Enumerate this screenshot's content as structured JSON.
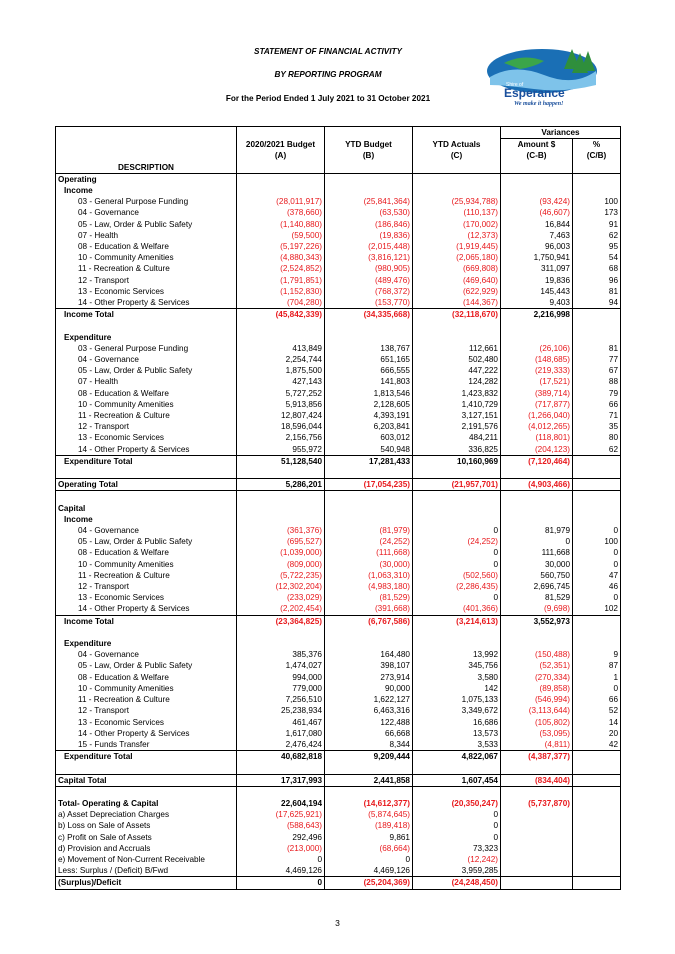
{
  "header": {
    "title": "STATEMENT OF FINANCIAL ACTIVITY",
    "subtitle": "BY REPORTING PROGRAM",
    "period": "For the Period Ended 1 July 2021 to 31 October 2021"
  },
  "logo": {
    "shire_of": "Shire of",
    "name": "Esperance",
    "tagline": "We make it happen!"
  },
  "table": {
    "variances_label": "Variances",
    "columns": [
      "DESCRIPTION",
      "2020/2021 Budget",
      "(A)",
      "YTD Budget",
      "(B)",
      "YTD Actuals",
      "(C)",
      "Amount $",
      "(C-B)",
      "%",
      "(C/B)"
    ],
    "rows": [
      {
        "t": "section",
        "label": "Operating"
      },
      {
        "t": "sub",
        "label": "Income"
      },
      {
        "t": "item",
        "label": "03 - General Purpose Funding",
        "v": [
          "(28,011,917)",
          "(25,841,364)",
          "(25,934,788)",
          "(93,424)",
          "100"
        ]
      },
      {
        "t": "item",
        "label": "04 - Governance",
        "v": [
          "(378,660)",
          "(63,530)",
          "(110,137)",
          "(46,607)",
          "173"
        ]
      },
      {
        "t": "item",
        "label": "05 - Law, Order & Public Safety",
        "v": [
          "(1,140,880)",
          "(186,846)",
          "(170,002)",
          "16,844",
          "91"
        ]
      },
      {
        "t": "item",
        "label": "07 - Health",
        "v": [
          "(59,500)",
          "(19,836)",
          "(12,373)",
          "7,463",
          "62"
        ]
      },
      {
        "t": "item",
        "label": "08 - Education & Welfare",
        "v": [
          "(5,197,226)",
          "(2,015,448)",
          "(1,919,445)",
          "96,003",
          "95"
        ]
      },
      {
        "t": "item",
        "label": "10 - Community Amenities",
        "v": [
          "(4,880,343)",
          "(3,816,121)",
          "(2,065,180)",
          "1,750,941",
          "54"
        ]
      },
      {
        "t": "item",
        "label": "11 - Recreation & Culture",
        "v": [
          "(2,524,852)",
          "(980,905)",
          "(669,808)",
          "311,097",
          "68"
        ]
      },
      {
        "t": "item",
        "label": "12 - Transport",
        "v": [
          "(1,791,851)",
          "(489,476)",
          "(469,640)",
          "19,836",
          "96"
        ]
      },
      {
        "t": "item",
        "label": "13 - Economic Services",
        "v": [
          "(1,152,830)",
          "(768,372)",
          "(622,929)",
          "145,443",
          "81"
        ]
      },
      {
        "t": "item",
        "label": "14 - Other Property & Services",
        "v": [
          "(704,280)",
          "(153,770)",
          "(144,367)",
          "9,403",
          "94"
        ]
      },
      {
        "t": "total",
        "label": "Income Total",
        "v": [
          "(45,842,339)",
          "(34,335,668)",
          "(32,118,670)",
          "2,216,998",
          ""
        ]
      },
      {
        "t": "blank"
      },
      {
        "t": "sub",
        "label": "Expenditure"
      },
      {
        "t": "item",
        "label": "03 - General Purpose Funding",
        "v": [
          "413,849",
          "138,767",
          "112,661",
          "(26,106)",
          "81"
        ]
      },
      {
        "t": "item",
        "label": "04 - Governance",
        "v": [
          "2,254,744",
          "651,165",
          "502,480",
          "(148,685)",
          "77"
        ]
      },
      {
        "t": "item",
        "label": "05 - Law, Order & Public Safety",
        "v": [
          "1,875,500",
          "666,555",
          "447,222",
          "(219,333)",
          "67"
        ]
      },
      {
        "t": "item",
        "label": "07 - Health",
        "v": [
          "427,143",
          "141,803",
          "124,282",
          "(17,521)",
          "88"
        ]
      },
      {
        "t": "item",
        "label": "08 - Education & Welfare",
        "v": [
          "5,727,252",
          "1,813,546",
          "1,423,832",
          "(389,714)",
          "79"
        ]
      },
      {
        "t": "item",
        "label": "10 - Community Amenities",
        "v": [
          "5,913,856",
          "2,128,605",
          "1,410,729",
          "(717,877)",
          "66"
        ]
      },
      {
        "t": "item",
        "label": "11 - Recreation & Culture",
        "v": [
          "12,807,424",
          "4,393,191",
          "3,127,151",
          "(1,266,040)",
          "71"
        ]
      },
      {
        "t": "item",
        "label": "12 - Transport",
        "v": [
          "18,596,044",
          "6,203,841",
          "2,191,576",
          "(4,012,265)",
          "35"
        ]
      },
      {
        "t": "item",
        "label": "13 - Economic Services",
        "v": [
          "2,156,756",
          "603,012",
          "484,211",
          "(118,801)",
          "80"
        ]
      },
      {
        "t": "item",
        "label": "14 - Other Property & Services",
        "v": [
          "955,972",
          "540,948",
          "336,825",
          "(204,123)",
          "62"
        ]
      },
      {
        "t": "total",
        "label": "Expenditure Total",
        "v": [
          "51,128,540",
          "17,281,433",
          "10,160,969",
          "(7,120,464)",
          ""
        ]
      },
      {
        "t": "blank"
      },
      {
        "t": "grand",
        "label": "Operating Total",
        "v": [
          "5,286,201",
          "(17,054,235)",
          "(21,957,701)",
          "(4,903,466)",
          ""
        ]
      },
      {
        "t": "blank"
      },
      {
        "t": "section",
        "label": "Capital"
      },
      {
        "t": "sub",
        "label": "Income"
      },
      {
        "t": "item",
        "label": "04 - Governance",
        "v": [
          "(361,376)",
          "(81,979)",
          "0",
          "81,979",
          "0"
        ]
      },
      {
        "t": "item",
        "label": "05 - Law, Order & Public Safety",
        "v": [
          "(695,527)",
          "(24,252)",
          "(24,252)",
          "0",
          "100"
        ]
      },
      {
        "t": "item",
        "label": "08 - Education & Welfare",
        "v": [
          "(1,039,000)",
          "(111,668)",
          "0",
          "111,668",
          "0"
        ]
      },
      {
        "t": "item",
        "label": "10 - Community Amenities",
        "v": [
          "(809,000)",
          "(30,000)",
          "0",
          "30,000",
          "0"
        ]
      },
      {
        "t": "item",
        "label": "11 - Recreation & Culture",
        "v": [
          "(5,722,235)",
          "(1,063,310)",
          "(502,560)",
          "560,750",
          "47"
        ]
      },
      {
        "t": "item",
        "label": "12 - Transport",
        "v": [
          "(12,302,204)",
          "(4,983,180)",
          "(2,286,435)",
          "2,696,745",
          "46"
        ]
      },
      {
        "t": "item",
        "label": "13 - Economic Services",
        "v": [
          "(233,029)",
          "(81,529)",
          "0",
          "81,529",
          "0"
        ]
      },
      {
        "t": "item",
        "label": "14 - Other Property & Services",
        "v": [
          "(2,202,454)",
          "(391,668)",
          "(401,366)",
          "(9,698)",
          "102"
        ]
      },
      {
        "t": "total",
        "label": "Income Total",
        "v": [
          "(23,364,825)",
          "(6,767,586)",
          "(3,214,613)",
          "3,552,973",
          ""
        ]
      },
      {
        "t": "blank"
      },
      {
        "t": "sub",
        "label": "Expenditure"
      },
      {
        "t": "item",
        "label": "04 - Governance",
        "v": [
          "385,376",
          "164,480",
          "13,992",
          "(150,488)",
          "9"
        ]
      },
      {
        "t": "item",
        "label": "05 - Law, Order & Public Safety",
        "v": [
          "1,474,027",
          "398,107",
          "345,756",
          "(52,351)",
          "87"
        ]
      },
      {
        "t": "item",
        "label": "08 - Education & Welfare",
        "v": [
          "994,000",
          "273,914",
          "3,580",
          "(270,334)",
          "1"
        ]
      },
      {
        "t": "item",
        "label": "10 - Community Amenities",
        "v": [
          "779,000",
          "90,000",
          "142",
          "(89,858)",
          "0"
        ]
      },
      {
        "t": "item",
        "label": "11 - Recreation & Culture",
        "v": [
          "7,256,510",
          "1,622,127",
          "1,075,133",
          "(546,994)",
          "66"
        ]
      },
      {
        "t": "item",
        "label": "12 - Transport",
        "v": [
          "25,238,934",
          "6,463,316",
          "3,349,672",
          "(3,113,644)",
          "52"
        ]
      },
      {
        "t": "item",
        "label": "13 - Economic Services",
        "v": [
          "461,467",
          "122,488",
          "16,686",
          "(105,802)",
          "14"
        ]
      },
      {
        "t": "item",
        "label": "14 - Other Property & Services",
        "v": [
          "1,617,080",
          "66,668",
          "13,573",
          "(53,095)",
          "20"
        ]
      },
      {
        "t": "item",
        "label": "15 - Funds Transfer",
        "v": [
          "2,476,424",
          "8,344",
          "3,533",
          "(4,811)",
          "42"
        ]
      },
      {
        "t": "total",
        "label": "Expenditure Total",
        "v": [
          "40,682,818",
          "9,209,444",
          "4,822,067",
          "(4,387,377)",
          ""
        ]
      },
      {
        "t": "blank"
      },
      {
        "t": "grand",
        "label": "Capital Total",
        "v": [
          "17,317,993",
          "2,441,858",
          "1,607,454",
          "(834,404)",
          ""
        ]
      },
      {
        "t": "blank"
      },
      {
        "t": "grand2",
        "label": "Total- Operating & Capital",
        "v": [
          "22,604,194",
          "(14,612,377)",
          "(20,350,247)",
          "(5,737,870)",
          ""
        ]
      },
      {
        "t": "adj",
        "label": "a) Asset Depreciation Charges",
        "v": [
          "(17,625,921)",
          "(5,874,645)",
          "0",
          "",
          ""
        ]
      },
      {
        "t": "adj",
        "label": "b) Loss on Sale of Assets",
        "v": [
          "(588,643)",
          "(189,418)",
          "0",
          "",
          ""
        ]
      },
      {
        "t": "adj",
        "label": "c) Profit on Sale of Assets",
        "v": [
          "292,496",
          "9,861",
          "0",
          "",
          ""
        ]
      },
      {
        "t": "adj",
        "label": "d) Provision and Accruals",
        "v": [
          "(213,000)",
          "(68,664)",
          "73,323",
          "",
          ""
        ]
      },
      {
        "t": "adj",
        "label": "e) Movement of Non-Current Receivable",
        "v": [
          "0",
          "0",
          "(12,242)",
          "",
          ""
        ]
      },
      {
        "t": "adj",
        "label": "Less: Surplus / (Deficit) B/Fwd",
        "v": [
          "4,469,126",
          "4,469,126",
          "3,959,285",
          "",
          ""
        ]
      },
      {
        "t": "final",
        "label": "(Surplus)/Deficit",
        "v": [
          "0",
          "(25,204,369)",
          "(24,248,450)",
          "",
          ""
        ]
      }
    ]
  },
  "page_number": "3"
}
